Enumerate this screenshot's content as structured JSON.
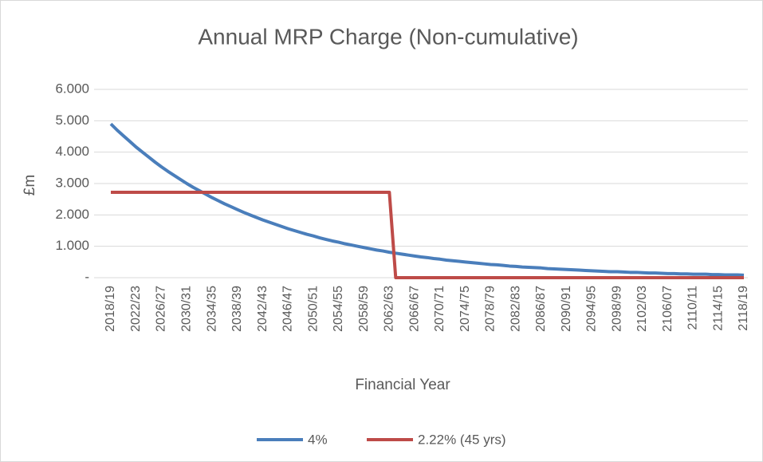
{
  "chart_data": {
    "type": "line",
    "title": "Annual MRP Charge (Non-cumulative)",
    "x_label": "Financial Year",
    "y_label": "£m",
    "categories": [
      "2018/19",
      null,
      null,
      null,
      "2022/23",
      null,
      null,
      null,
      "2026/27",
      null,
      null,
      null,
      "2030/31",
      null,
      null,
      null,
      "2034/35",
      null,
      null,
      null,
      "2038/39",
      null,
      null,
      null,
      "2042/43",
      null,
      null,
      null,
      "2046/47",
      null,
      null,
      null,
      "2050/51",
      null,
      null,
      null,
      "2054/55",
      null,
      null,
      null,
      "2058/59",
      null,
      null,
      null,
      "2062/63",
      null,
      null,
      null,
      "2066/67",
      null,
      null,
      null,
      "2070/71",
      null,
      null,
      null,
      "2074/75",
      null,
      null,
      null,
      "2078/79",
      null,
      null,
      null,
      "2082/83",
      null,
      null,
      null,
      "2086/87",
      null,
      null,
      null,
      "2090/91",
      null,
      null,
      null,
      "2094/95",
      null,
      null,
      null,
      "2098/99",
      null,
      null,
      null,
      "2102/03",
      null,
      null,
      null,
      "2106/07",
      null,
      null,
      null,
      "2110/11",
      null,
      null,
      null,
      "2114/15",
      null,
      null,
      null,
      "2118/19"
    ],
    "series": [
      {
        "name": "4%",
        "color": "#4a7ebb",
        "values": [
          4.9,
          4.7,
          4.52,
          4.34,
          4.16,
          4.0,
          3.84,
          3.68,
          3.53,
          3.39,
          3.26,
          3.13,
          3.0,
          2.88,
          2.77,
          2.66,
          2.55,
          2.45,
          2.35,
          2.26,
          2.17,
          2.08,
          2.0,
          1.92,
          1.84,
          1.77,
          1.7,
          1.63,
          1.56,
          1.5,
          1.44,
          1.38,
          1.33,
          1.27,
          1.22,
          1.17,
          1.13,
          1.08,
          1.04,
          1.0,
          0.96,
          0.92,
          0.88,
          0.85,
          0.81,
          0.78,
          0.75,
          0.72,
          0.69,
          0.66,
          0.64,
          0.61,
          0.59,
          0.56,
          0.54,
          0.52,
          0.5,
          0.48,
          0.46,
          0.44,
          0.42,
          0.41,
          0.39,
          0.37,
          0.36,
          0.34,
          0.33,
          0.32,
          0.31,
          0.29,
          0.28,
          0.27,
          0.26,
          0.25,
          0.24,
          0.23,
          0.22,
          0.21,
          0.2,
          0.19,
          0.19,
          0.18,
          0.17,
          0.17,
          0.16,
          0.15,
          0.15,
          0.14,
          0.13,
          0.13,
          0.12,
          0.12,
          0.11,
          0.11,
          0.11,
          0.1,
          0.1,
          0.09,
          0.09,
          0.09,
          0.08
        ]
      },
      {
        "name": "2.22% (45 yrs)",
        "color": "#be4b48",
        "values": [
          2.72,
          2.72,
          2.72,
          2.72,
          2.72,
          2.72,
          2.72,
          2.72,
          2.72,
          2.72,
          2.72,
          2.72,
          2.72,
          2.72,
          2.72,
          2.72,
          2.72,
          2.72,
          2.72,
          2.72,
          2.72,
          2.72,
          2.72,
          2.72,
          2.72,
          2.72,
          2.72,
          2.72,
          2.72,
          2.72,
          2.72,
          2.72,
          2.72,
          2.72,
          2.72,
          2.72,
          2.72,
          2.72,
          2.72,
          2.72,
          2.72,
          2.72,
          2.72,
          2.72,
          2.72,
          0,
          0,
          0,
          0,
          0,
          0,
          0,
          0,
          0,
          0,
          0,
          0,
          0,
          0,
          0,
          0,
          0,
          0,
          0,
          0,
          0,
          0,
          0,
          0,
          0,
          0,
          0,
          0,
          0,
          0,
          0,
          0,
          0,
          0,
          0,
          0,
          0,
          0,
          0,
          0,
          0,
          0,
          0,
          0,
          0,
          0,
          0,
          0,
          0,
          0,
          0,
          0,
          0,
          0,
          0,
          0
        ]
      }
    ],
    "ylim": [
      0,
      6
    ],
    "yticks": [
      {
        "value": 0,
        "label": "-"
      },
      {
        "value": 1,
        "label": "1.000"
      },
      {
        "value": 2,
        "label": "2.000"
      },
      {
        "value": 3,
        "label": "3.000"
      },
      {
        "value": 4,
        "label": "4.000"
      },
      {
        "value": 5,
        "label": "5.000"
      },
      {
        "value": 6,
        "label": "6.000"
      }
    ],
    "grid": true,
    "legend": "bottom"
  }
}
